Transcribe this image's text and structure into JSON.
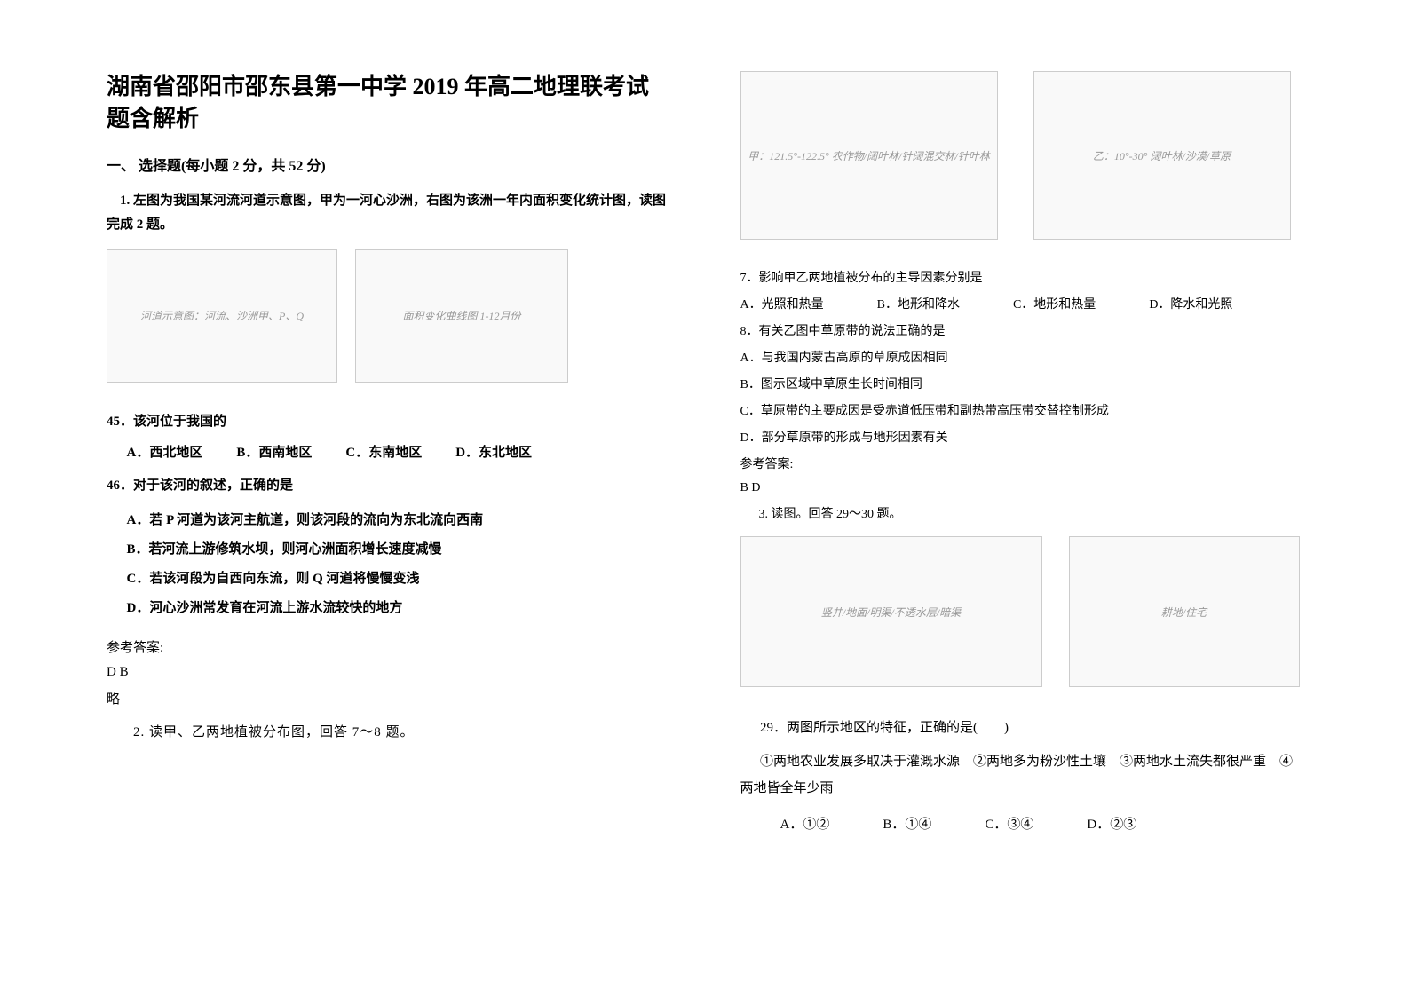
{
  "leftColumn": {
    "title": "湖南省邵阳市邵东县第一中学 2019 年高二地理联考试题含解析",
    "sectionHeader": "一、 选择题(每小题 2 分，共 52 分)",
    "q1": {
      "stem": "1. 左图为我国某河流河道示意图，甲为一河心沙洲，右图为该洲一年内面积变化统计图，读图完成 2 题。",
      "img_left_label": "河道示意图：河流、沙洲甲、P、Q",
      "img_right_label": "面积变化曲线图 1-12月份",
      "sub45": "45．该河位于我国的",
      "opts45": {
        "a": "A．西北地区",
        "b": "B．西南地区",
        "c": "C．东南地区",
        "d": "D．东北地区"
      },
      "sub46": "46．对于该河的叙述，正确的是",
      "opts46": {
        "a": "A．若 P 河道为该河主航道，则该河段的流向为东北流向西南",
        "b": "B．若河流上游修筑水坝，则河心洲面积增长速度减慢",
        "c": "C．若该河段为自西向东流，则 Q 河道将慢慢变浅",
        "d": "D．河心沙洲常发育在河流上游水流较快的地方"
      },
      "answerLabel": "参考答案:",
      "answerValue": "D   B",
      "answerSkip": "略"
    },
    "q2": {
      "intro": "2. 读甲、乙两地植被分布图，回答 7～8 题。"
    }
  },
  "rightColumn": {
    "img_left_label": "甲：121.5°-122.5° 农作物/阔叶林/针阔混交林/针叶林",
    "img_right_label": "乙：10°-30° 阔叶林/沙漠/草原",
    "q7": {
      "stem": "7．影响甲乙两地植被分布的主导因素分别是",
      "opts": {
        "a": "A．光照和热量",
        "b": "B．地形和降水",
        "c": "C．地形和热量",
        "d": "D．降水和光照"
      }
    },
    "q8": {
      "stem": "8．有关乙图中草原带的说法正确的是",
      "opts": {
        "a": "A．与我国内蒙古高原的草原成因相同",
        "b": "B．图示区域中草原生长时间相同",
        "c": "C．草原带的主要成因是受赤道低压带和副热带高压带交替控制形成",
        "d": "D．部分草原带的形成与地形因素有关"
      }
    },
    "answerLabel": "参考答案:",
    "answerValue": "B  D",
    "q3": {
      "intro": "3. 读图。回答 29～30 题。",
      "img_left_label": "竖井/地面/明渠/不透水层/暗渠",
      "img_right_label": "耕地/住宅",
      "q29": {
        "stem": "29．两图所示地区的特征，正确的是(　　)",
        "choices": "①两地农业发展多取决于灌溉水源　②两地多为粉沙性土壤　③两地水土流失都很严重　④两地皆全年少雨",
        "opts": {
          "a": "A．①②",
          "b": "B．①④",
          "c": "C．③④",
          "d": "D．②③"
        }
      }
    }
  }
}
